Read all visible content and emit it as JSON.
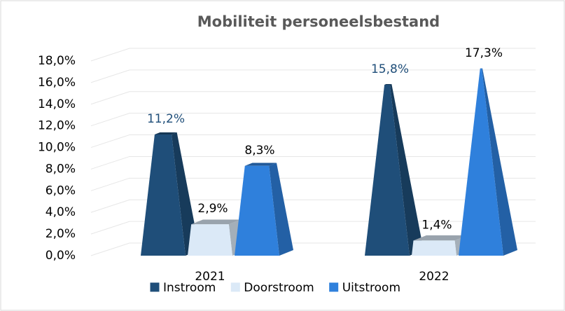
{
  "chart_data": {
    "type": "bar",
    "title": "Mobiliteit personeelsbestand",
    "categories": [
      "2021",
      "2022"
    ],
    "series": [
      {
        "name": "Instroom",
        "color": "#1f4e79",
        "label_color": "#1f4e79",
        "values": [
          11.2,
          15.8
        ],
        "value_labels": [
          "11,2%",
          "15,8%"
        ]
      },
      {
        "name": "Doorstroom",
        "color": "#dbe9f7",
        "label_color": "#000000",
        "values": [
          2.9,
          1.4
        ],
        "value_labels": [
          "2,9%",
          "1,4%"
        ]
      },
      {
        "name": "Uitstroom",
        "color": "#2f80dc",
        "label_color": "#000000",
        "values": [
          8.3,
          17.3
        ],
        "value_labels": [
          "8,3%",
          "17,3%"
        ]
      }
    ],
    "ylim": [
      0,
      18
    ],
    "yticks": [
      {
        "value": 0,
        "label": "0,0%"
      },
      {
        "value": 2,
        "label": "2,0%"
      },
      {
        "value": 4,
        "label": "4,0%"
      },
      {
        "value": 6,
        "label": "6,0%"
      },
      {
        "value": 8,
        "label": "8,0%"
      },
      {
        "value": 10,
        "label": "10,0%"
      },
      {
        "value": 12,
        "label": "12,0%"
      },
      {
        "value": 14,
        "label": "14,0%"
      },
      {
        "value": 16,
        "label": "16,0%"
      },
      {
        "value": 18,
        "label": "18,0%"
      }
    ],
    "grid": true,
    "legend": "bottom"
  }
}
